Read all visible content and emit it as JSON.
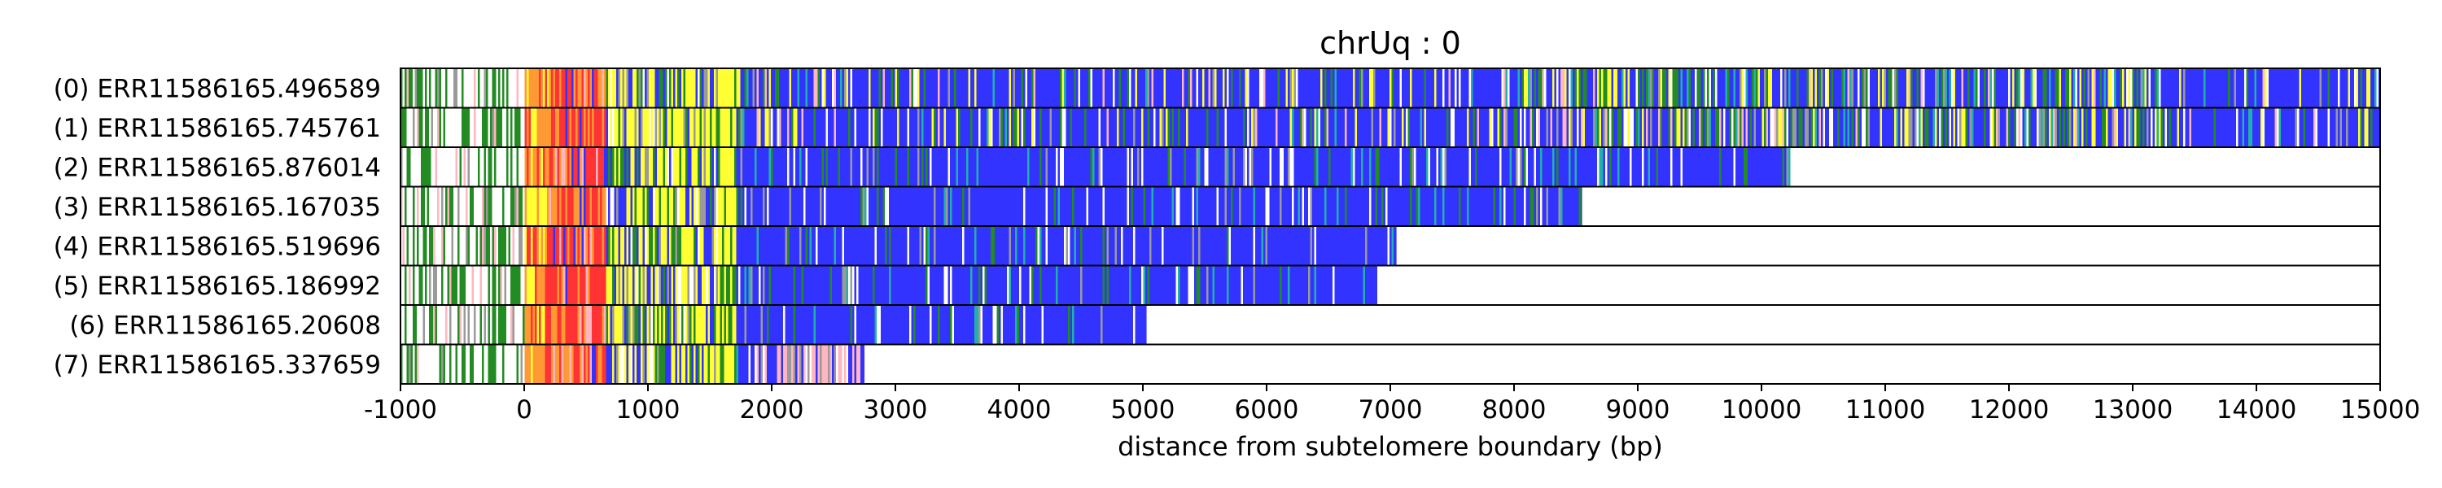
{
  "chart_data": {
    "type": "heatmap",
    "title": "chrUq : 0",
    "xlabel": "distance from subtelomere boundary (bp)",
    "ylabel": "",
    "xlim": [
      -1000,
      15000
    ],
    "xticks": [
      "-1000",
      "0",
      "1000",
      "2000",
      "3000",
      "4000",
      "5000",
      "6000",
      "7000",
      "8000",
      "9000",
      "10000",
      "11000",
      "12000",
      "13000",
      "14000",
      "15000"
    ],
    "grid": "vertical dashed at x ticks",
    "colors": {
      "blue": "#3333ff",
      "green": "#228b22",
      "yellow": "#ffff33",
      "red": "#ff3333",
      "orange": "#ff9933",
      "pink": "#ffb6c1",
      "teal": "#20b2aa",
      "gray": "#9a9a9a",
      "white": "#ffffff"
    },
    "reads": [
      {
        "label": "(0) ERR11586165.496589",
        "start": -1000,
        "end": 15000
      },
      {
        "label": "(1) ERR11586165.745761",
        "start": -1000,
        "end": 15000
      },
      {
        "label": "(2) ERR11586165.876014",
        "start": -1000,
        "end": 10250
      },
      {
        "label": "(3) ERR11586165.167035",
        "start": -1000,
        "end": 8550
      },
      {
        "label": "(4) ERR11586165.519696",
        "start": -1000,
        "end": 7050
      },
      {
        "label": "(5) ERR11586165.186992",
        "start": -1000,
        "end": 6900
      },
      {
        "label": "(6) ERR11586165.20608",
        "start": -1000,
        "end": 5030
      },
      {
        "label": "(7) ERR11586165.337659",
        "start": -1000,
        "end": 2750
      }
    ]
  }
}
